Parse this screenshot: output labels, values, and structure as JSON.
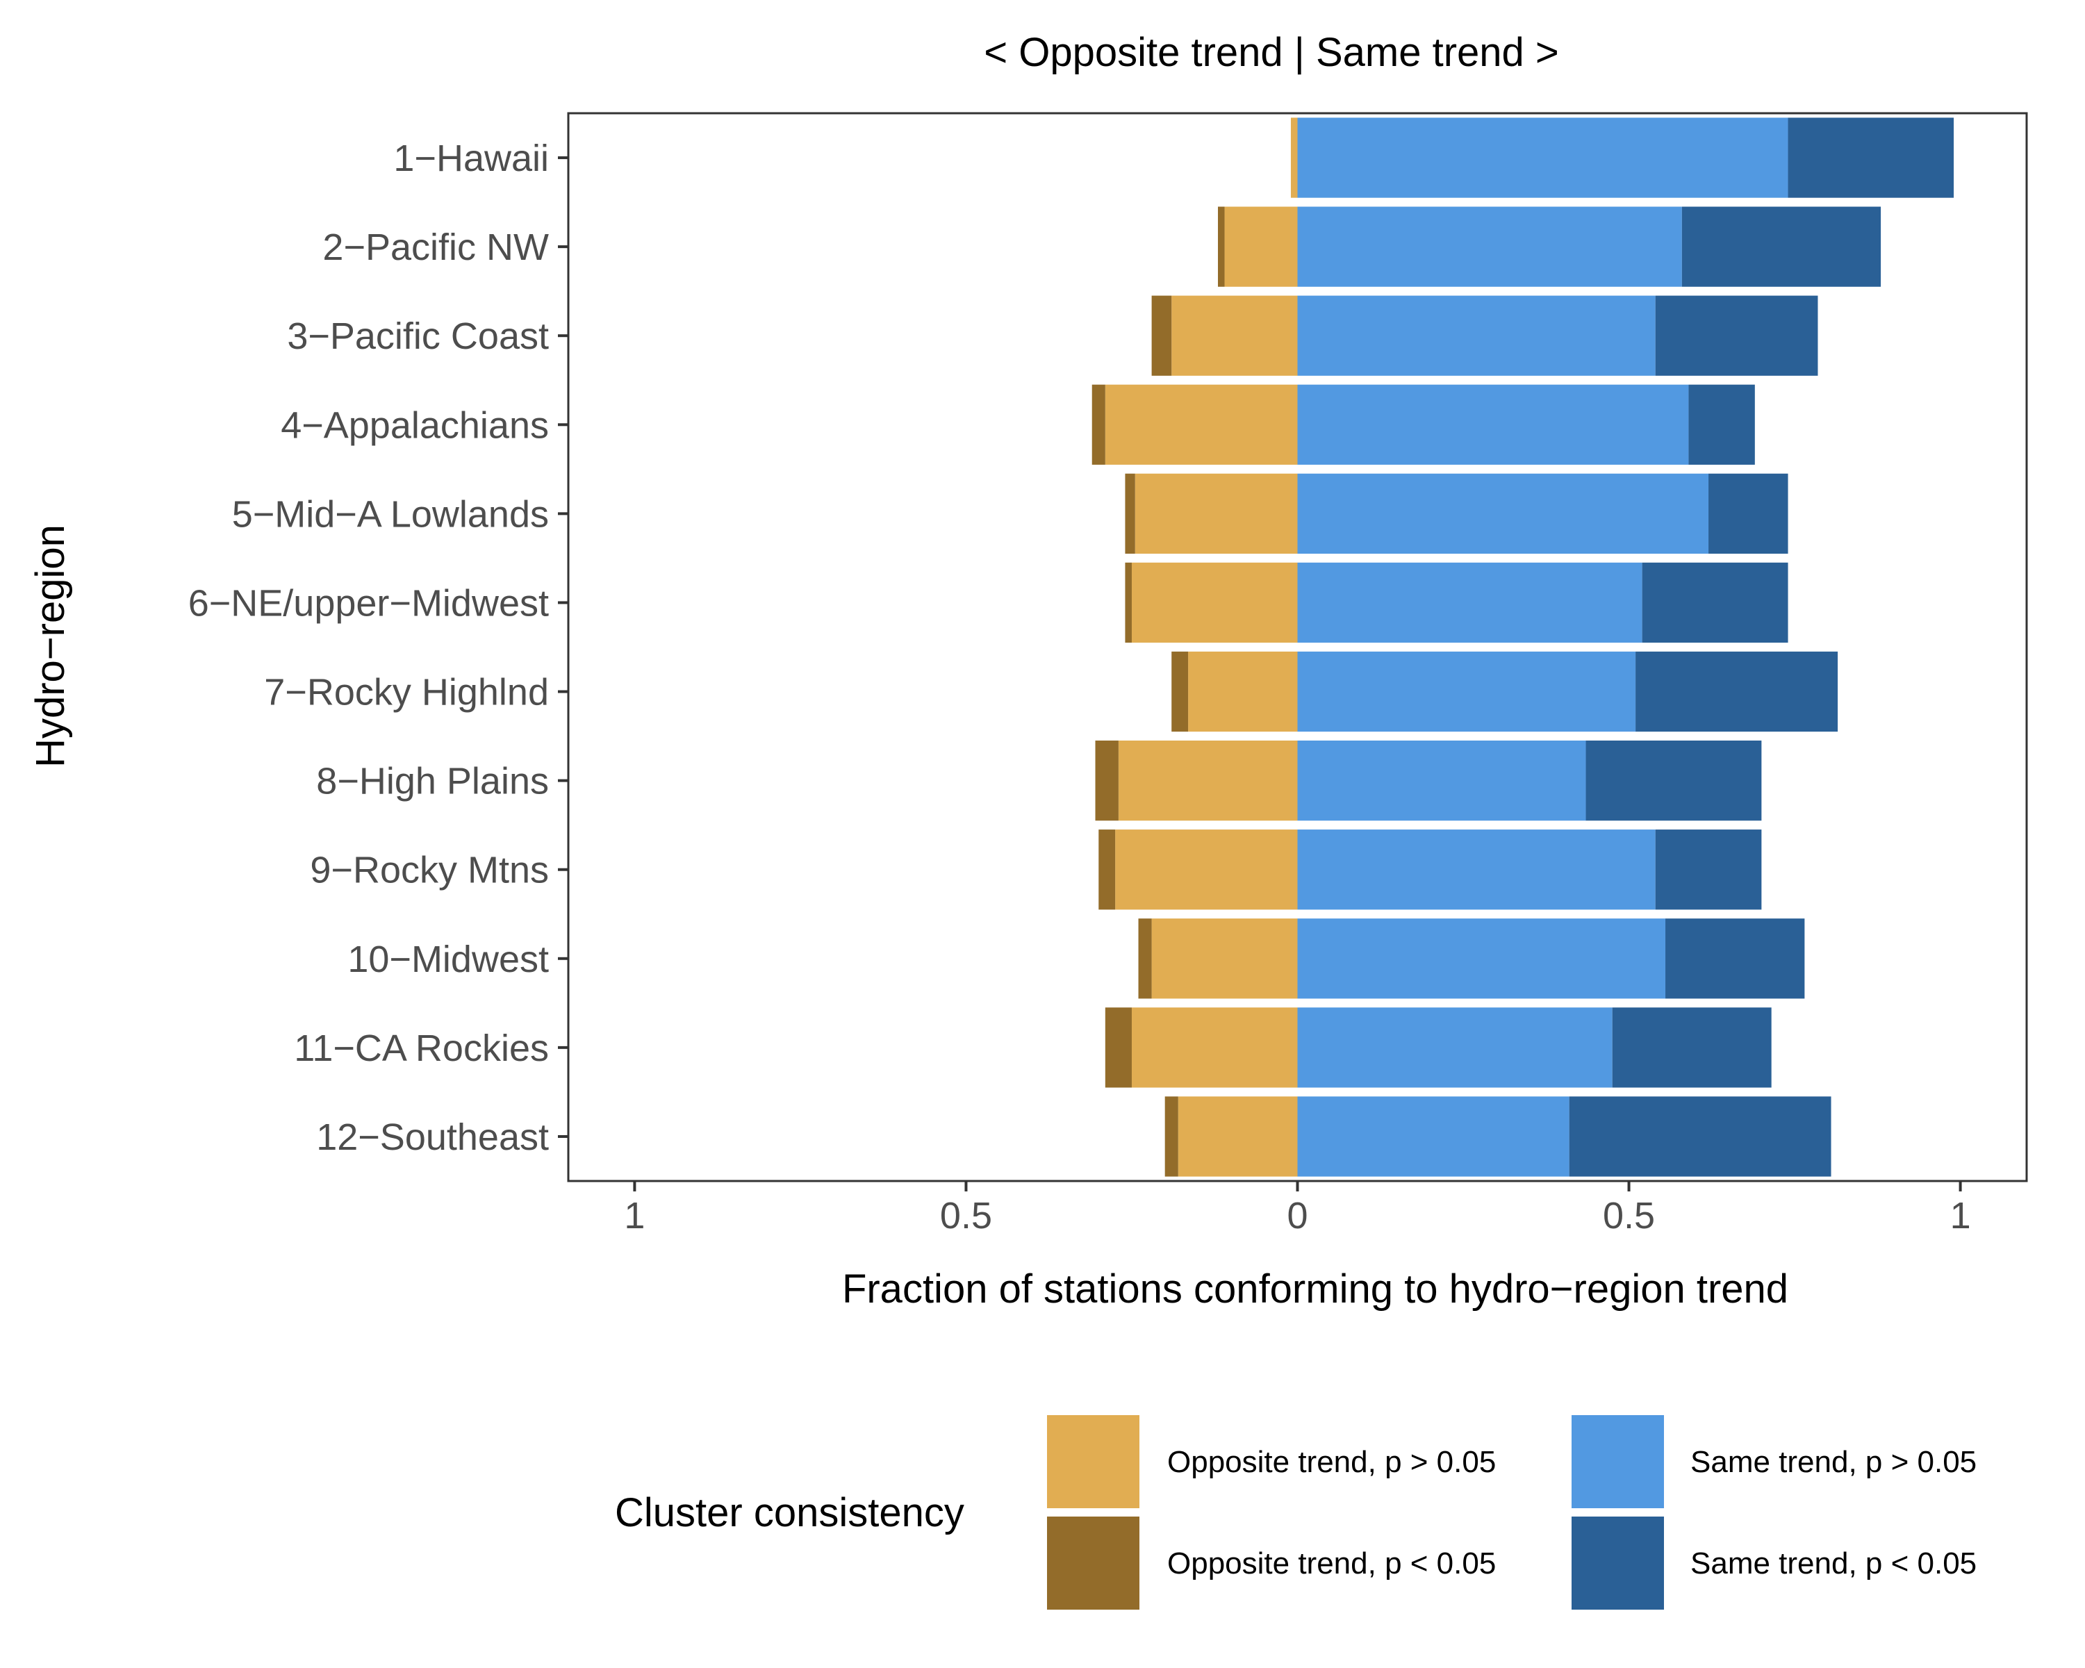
{
  "chart_data": {
    "type": "bar",
    "orientation": "horizontal",
    "stacked": true,
    "diverging": true,
    "title": "< Opposite trend | Same trend >",
    "xlabel": "Fraction of stations conforming to hydro−region trend",
    "ylabel": "Hydro−region",
    "xlim": [
      -1.1,
      1.1
    ],
    "x_ticks": [
      -1,
      -0.5,
      0,
      0.5,
      1
    ],
    "x_tick_labels": [
      "1",
      "0.5",
      "0",
      "0.5",
      "1"
    ],
    "categories": [
      "1−Hawaii",
      "2−Pacific NW",
      "3−Pacific Coast",
      "4−Appalachians",
      "5−Mid−A Lowlands",
      "6−NE/upper−Midwest",
      "7−Rocky Highlnd",
      "8−High Plains",
      "9−Rocky Mtns",
      "10−Midwest",
      "11−CA Rockies",
      "12−Southeast"
    ],
    "series": [
      {
        "name": "Opposite trend, p > 0.05",
        "color": "#E1AD52",
        "side": "negative",
        "values": [
          0.01,
          0.11,
          0.19,
          0.29,
          0.245,
          0.25,
          0.165,
          0.27,
          0.275,
          0.22,
          0.25,
          0.18
        ]
      },
      {
        "name": "Opposite trend, p < 0.05",
        "color": "#936C2A",
        "side": "negative",
        "values": [
          0.0,
          0.01,
          0.03,
          0.02,
          0.015,
          0.01,
          0.025,
          0.035,
          0.025,
          0.02,
          0.04,
          0.02
        ]
      },
      {
        "name": "Same trend, p > 0.05",
        "color": "#5299E1",
        "side": "positive",
        "values": [
          0.74,
          0.58,
          0.54,
          0.59,
          0.62,
          0.52,
          0.51,
          0.435,
          0.54,
          0.555,
          0.475,
          0.41
        ]
      },
      {
        "name": "Same trend, p < 0.05",
        "color": "#2A6096",
        "side": "positive",
        "values": [
          0.25,
          0.3,
          0.245,
          0.1,
          0.12,
          0.22,
          0.305,
          0.265,
          0.16,
          0.21,
          0.24,
          0.395
        ]
      }
    ],
    "legend": {
      "title": "Cluster consistency",
      "placement": "bottom",
      "items": [
        "Opposite trend, p > 0.05",
        "Opposite trend, p < 0.05",
        "Same trend, p > 0.05",
        "Same trend, p < 0.05"
      ]
    },
    "grid": false
  }
}
